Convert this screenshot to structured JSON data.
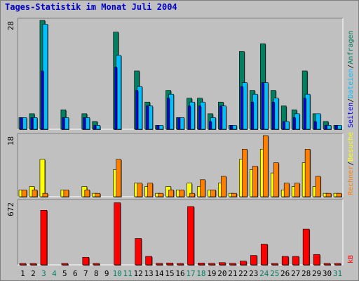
{
  "title": "Tages-Statistik im Monat Juli 2004",
  "colors": {
    "background": "#c0c0c0",
    "title": "#0000cc",
    "anfragen": "#008060",
    "dateien": "#00c0ff",
    "seiten": "#0000ff",
    "besuche": "#ffff00",
    "rechner": "#ff8000",
    "kb": "#ff0000",
    "weekend_label": "#008060"
  },
  "right_labels": {
    "panel1": [
      "Anfragen",
      "Dateien",
      "Seiten"
    ],
    "panel2": [
      "Besuche",
      "Rechner"
    ],
    "panel3": [
      "kB"
    ],
    "separator": "/"
  },
  "chart_data": [
    {
      "type": "bar",
      "title": "Tages-Statistik im Monat Juli 2004",
      "categories": [
        "1",
        "2",
        "3",
        "4",
        "5",
        "6",
        "7",
        "8",
        "9",
        "10",
        "11",
        "12",
        "13",
        "14",
        "15",
        "16",
        "17",
        "18",
        "19",
        "20",
        "21",
        "22",
        "23",
        "24",
        "25",
        "26",
        "27",
        "28",
        "29",
        "30",
        "31"
      ],
      "weekend_days": [
        "3",
        "4",
        "10",
        "11",
        "17",
        "18",
        "24",
        "25",
        "31"
      ],
      "ymax_label": "28",
      "ylim": [
        0,
        28
      ],
      "series": [
        {
          "name": "Anfragen",
          "values": [
            3,
            4,
            28,
            0,
            5,
            0,
            4,
            2,
            0,
            25,
            0,
            15,
            7,
            1,
            10,
            3,
            8,
            8,
            4,
            7,
            1,
            20,
            10,
            22,
            10,
            6,
            5,
            15,
            4,
            2,
            1
          ]
        },
        {
          "name": "Dateien",
          "values": [
            3,
            3,
            27,
            0,
            3,
            0,
            3,
            1,
            0,
            19,
            0,
            11,
            6,
            1,
            9,
            3,
            7,
            7,
            3,
            6,
            1,
            12,
            9,
            12,
            8,
            2,
            4,
            9,
            4,
            1,
            1
          ]
        },
        {
          "name": "Seiten",
          "values": [
            3,
            3,
            15,
            0,
            3,
            0,
            3,
            1,
            0,
            16,
            0,
            10,
            6,
            1,
            8,
            3,
            6,
            6,
            2,
            6,
            1,
            11,
            7,
            12,
            7,
            2,
            3,
            8,
            2,
            1,
            1
          ]
        }
      ]
    },
    {
      "type": "bar",
      "categories": [
        "1",
        "2",
        "3",
        "4",
        "5",
        "6",
        "7",
        "8",
        "9",
        "10",
        "11",
        "12",
        "13",
        "14",
        "15",
        "16",
        "17",
        "18",
        "19",
        "20",
        "21",
        "22",
        "23",
        "24",
        "25",
        "26",
        "27",
        "28",
        "29",
        "30",
        "31"
      ],
      "ymax_label": "18",
      "ylim": [
        0,
        18
      ],
      "series": [
        {
          "name": "Besuche",
          "values": [
            2,
            3,
            11,
            0,
            2,
            0,
            3,
            1,
            0,
            8,
            0,
            4,
            3,
            1,
            3,
            2,
            4,
            3,
            2,
            4,
            1,
            11,
            8,
            14,
            7,
            2,
            3,
            10,
            3,
            1,
            1
          ]
        },
        {
          "name": "Rechner",
          "values": [
            2,
            2,
            1,
            0,
            2,
            0,
            2,
            1,
            0,
            11,
            0,
            4,
            4,
            1,
            2,
            2,
            1,
            5,
            2,
            6,
            1,
            14,
            9,
            18,
            10,
            4,
            4,
            14,
            6,
            1,
            1
          ]
        }
      ]
    },
    {
      "type": "bar",
      "categories": [
        "1",
        "2",
        "3",
        "4",
        "5",
        "6",
        "7",
        "8",
        "9",
        "10",
        "11",
        "12",
        "13",
        "14",
        "15",
        "16",
        "17",
        "18",
        "19",
        "20",
        "21",
        "22",
        "23",
        "24",
        "25",
        "26",
        "27",
        "28",
        "29",
        "30",
        "31"
      ],
      "ymax_label": "672",
      "ylim": [
        0,
        672
      ],
      "series": [
        {
          "name": "kB",
          "values": [
            8,
            8,
            580,
            0,
            8,
            0,
            80,
            8,
            0,
            660,
            0,
            280,
            90,
            16,
            20,
            12,
            620,
            20,
            16,
            24,
            16,
            40,
            100,
            220,
            8,
            90,
            90,
            380,
            110,
            10,
            8
          ]
        }
      ]
    }
  ]
}
